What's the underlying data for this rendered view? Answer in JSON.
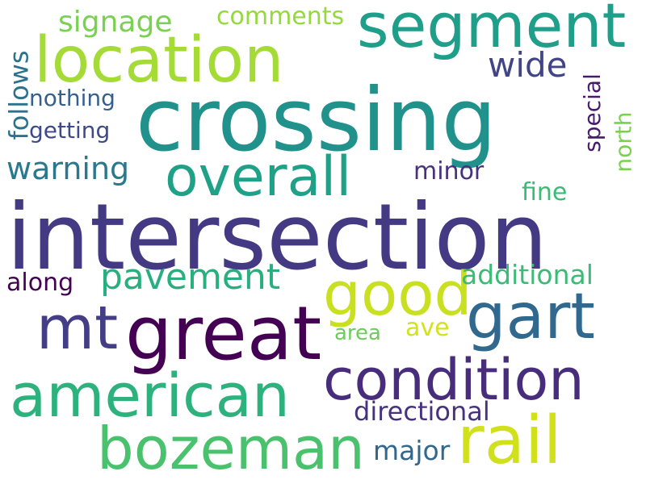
{
  "words": [
    {
      "id": "intersection",
      "text": "intersection",
      "color": "#443983"
    },
    {
      "id": "crossing",
      "text": "crossing",
      "color": "#21918c"
    },
    {
      "id": "segment",
      "text": "segment",
      "color": "#1f9e89"
    },
    {
      "id": "location",
      "text": "location",
      "color": "#a5db36"
    },
    {
      "id": "overall",
      "text": "overall",
      "color": "#1fa187"
    },
    {
      "id": "great",
      "text": "great",
      "color": "#440154"
    },
    {
      "id": "mt",
      "text": "mt",
      "color": "#433e85"
    },
    {
      "id": "good",
      "text": "good",
      "color": "#c8e020"
    },
    {
      "id": "gart",
      "text": "gart",
      "color": "#31688e"
    },
    {
      "id": "condition",
      "text": "condition",
      "color": "#472d7b"
    },
    {
      "id": "american",
      "text": "american",
      "color": "#2db27d"
    },
    {
      "id": "bozeman",
      "text": "bozeman",
      "color": "#4ac16d"
    },
    {
      "id": "rail",
      "text": "rail",
      "color": "#d0e11c"
    },
    {
      "id": "signage",
      "text": "signage",
      "color": "#7ad151"
    },
    {
      "id": "comments",
      "text": "comments",
      "color": "#95d840"
    },
    {
      "id": "wide",
      "text": "wide",
      "color": "#414487"
    },
    {
      "id": "follows",
      "text": "follows",
      "color": "#2c728e"
    },
    {
      "id": "nothing",
      "text": "nothing",
      "color": "#355f8d"
    },
    {
      "id": "getting",
      "text": "getting",
      "color": "#3e4989"
    },
    {
      "id": "warning",
      "text": "warning",
      "color": "#2a788e"
    },
    {
      "id": "special",
      "text": "special",
      "color": "#481a6c"
    },
    {
      "id": "north",
      "text": "north",
      "color": "#7ad151"
    },
    {
      "id": "minor",
      "text": "minor",
      "color": "#46327e"
    },
    {
      "id": "fine",
      "text": "fine",
      "color": "#3bbb75"
    },
    {
      "id": "pavement",
      "text": "pavement",
      "color": "#29af7f"
    },
    {
      "id": "along",
      "text": "along",
      "color": "#440154"
    },
    {
      "id": "additional",
      "text": "additional",
      "color": "#3bbb75"
    },
    {
      "id": "area",
      "text": "area",
      "color": "#6ccd5a"
    },
    {
      "id": "ave",
      "text": "ave",
      "color": "#d2e21b"
    },
    {
      "id": "directional",
      "text": "directional",
      "color": "#46327e"
    },
    {
      "id": "major",
      "text": "major",
      "color": "#31688e"
    }
  ]
}
